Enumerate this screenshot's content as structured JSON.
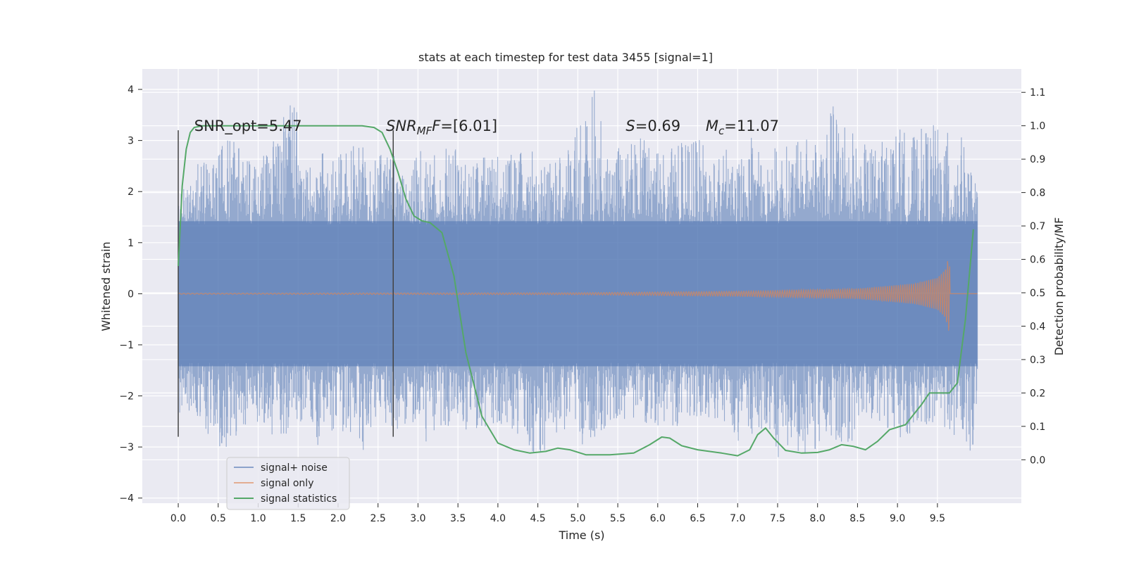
{
  "chart_data": {
    "type": "line",
    "title": "stats at each timestep for test data 3455 [signal=1]",
    "xlabel": "Time (s)",
    "ylabel": "Whitened strain",
    "y2label": "Detection probability/MF",
    "xlim": [
      -0.45,
      10.55
    ],
    "ylim": [
      -4.1,
      4.4
    ],
    "y2lim": [
      -0.13,
      1.17
    ],
    "grid": true,
    "legend_position": "lower-left",
    "x_ticks": [
      0.0,
      0.5,
      1.0,
      1.5,
      2.0,
      2.5,
      3.0,
      3.5,
      4.0,
      4.5,
      5.0,
      5.5,
      6.0,
      6.5,
      7.0,
      7.5,
      8.0,
      8.5,
      9.0,
      9.5
    ],
    "x_tick_labels": [
      "0.0",
      "0.5",
      "1.0",
      "1.5",
      "2.0",
      "2.5",
      "3.0",
      "3.5",
      "4.0",
      "4.5",
      "5.0",
      "5.5",
      "6.0",
      "6.5",
      "7.0",
      "7.5",
      "8.0",
      "8.5",
      "9.0",
      "9.5"
    ],
    "y_ticks": [
      4,
      3,
      2,
      1,
      0,
      -1,
      -2,
      -3,
      -4
    ],
    "y_tick_labels": [
      "4",
      "3",
      "2",
      "1",
      "0",
      "−1",
      "−2",
      "−3",
      "−4"
    ],
    "y2_ticks": [
      1.1,
      1.0,
      0.9,
      0.8,
      0.7,
      0.6,
      0.5,
      0.4,
      0.3,
      0.2,
      0.1,
      0.0
    ],
    "y2_tick_labels": [
      "1.1",
      "1.0",
      "0.9",
      "0.8",
      "0.7",
      "0.6",
      "0.5",
      "0.4",
      "0.3",
      "0.2",
      "0.1",
      "0.0"
    ],
    "annotations": [
      {
        "text": "SNR_opt=5.47",
        "x": 0.2,
        "y": 3.3
      },
      {
        "text": "SNR",
        "sub": "MF",
        "rest": "=[6.01]",
        "x": 2.6,
        "y": 3.3
      },
      {
        "text": "S",
        "rest": "=0.69",
        "x": 5.6,
        "y": 3.3
      },
      {
        "text": "M",
        "sub": "c",
        "rest": "=11.07",
        "x": 6.6,
        "y": 3.3
      }
    ],
    "vertical_lines": [
      {
        "x": 0.0,
        "y0": -2.8,
        "y1": 3.2
      },
      {
        "x": 2.69,
        "y0": -2.8,
        "y1": 3.2
      }
    ],
    "series": [
      {
        "name": "signal+ noise",
        "color": "#4c72b0",
        "x_range": [
          0.0,
          10.0
        ],
        "min_pts": [
          [
            0.0,
            -2.8
          ],
          [
            0.1,
            -2.3
          ],
          [
            0.3,
            -2.6
          ],
          [
            0.6,
            -3.2
          ],
          [
            0.8,
            -2.7
          ],
          [
            1.0,
            -2.5
          ],
          [
            1.2,
            -2.9
          ],
          [
            1.5,
            -2.6
          ],
          [
            1.6,
            -2.5
          ],
          [
            1.8,
            -3.4
          ],
          [
            1.9,
            -2.8
          ],
          [
            2.2,
            -3.0
          ],
          [
            2.3,
            -3.2
          ],
          [
            2.5,
            -2.4
          ],
          [
            2.7,
            -2.7
          ],
          [
            2.9,
            -2.5
          ],
          [
            3.1,
            -2.9
          ],
          [
            3.3,
            -2.6
          ],
          [
            3.6,
            -2.7
          ],
          [
            3.9,
            -2.6
          ],
          [
            4.2,
            -2.7
          ],
          [
            4.5,
            -3.3
          ],
          [
            4.8,
            -2.6
          ],
          [
            5.1,
            -3.1
          ],
          [
            5.3,
            -2.7
          ],
          [
            5.6,
            -2.5
          ],
          [
            5.9,
            -2.6
          ],
          [
            6.1,
            -2.7
          ],
          [
            6.4,
            -2.5
          ],
          [
            6.7,
            -2.6
          ],
          [
            7.0,
            -2.9
          ],
          [
            7.3,
            -2.8
          ],
          [
            7.5,
            -3.4
          ],
          [
            7.7,
            -2.9
          ],
          [
            7.9,
            -3.6
          ],
          [
            8.1,
            -2.7
          ],
          [
            8.3,
            -3.1
          ],
          [
            8.6,
            -2.6
          ],
          [
            8.8,
            -2.5
          ],
          [
            9.0,
            -2.9
          ],
          [
            9.3,
            -2.6
          ],
          [
            9.5,
            -2.5
          ],
          [
            9.7,
            -2.8
          ],
          [
            9.8,
            -2.7
          ],
          [
            9.95,
            -3.3
          ],
          [
            10.0,
            -2.0
          ]
        ],
        "max_pts": [
          [
            0.0,
            2.0
          ],
          [
            0.1,
            2.1
          ],
          [
            0.3,
            2.7
          ],
          [
            0.6,
            3.3
          ],
          [
            0.8,
            2.8
          ],
          [
            1.0,
            2.5
          ],
          [
            1.2,
            3.1
          ],
          [
            1.45,
            4.0
          ],
          [
            1.6,
            2.6
          ],
          [
            1.8,
            2.9
          ],
          [
            2.0,
            2.7
          ],
          [
            2.2,
            3.2
          ],
          [
            2.4,
            2.6
          ],
          [
            2.6,
            2.8
          ],
          [
            2.8,
            2.6
          ],
          [
            3.0,
            2.9
          ],
          [
            3.2,
            2.7
          ],
          [
            3.4,
            3.1
          ],
          [
            3.6,
            2.6
          ],
          [
            3.9,
            2.8
          ],
          [
            4.1,
            2.7
          ],
          [
            4.4,
            3.0
          ],
          [
            4.7,
            2.6
          ],
          [
            4.9,
            2.9
          ],
          [
            5.2,
            4.1
          ],
          [
            5.4,
            2.7
          ],
          [
            5.6,
            3.0
          ],
          [
            5.9,
            3.1
          ],
          [
            6.1,
            2.8
          ],
          [
            6.4,
            3.1
          ],
          [
            6.7,
            2.9
          ],
          [
            7.0,
            2.8
          ],
          [
            7.2,
            3.1
          ],
          [
            7.5,
            2.9
          ],
          [
            7.8,
            3.0
          ],
          [
            8.0,
            3.3
          ],
          [
            8.1,
            3.5
          ],
          [
            8.3,
            4.0
          ],
          [
            8.5,
            2.9
          ],
          [
            8.8,
            3.0
          ],
          [
            9.0,
            3.3
          ],
          [
            9.2,
            3.1
          ],
          [
            9.4,
            3.4
          ],
          [
            9.6,
            3.2
          ],
          [
            9.8,
            3.1
          ],
          [
            9.95,
            2.3
          ],
          [
            10.0,
            2.1
          ]
        ]
      },
      {
        "name": "signal only",
        "color": "#dd8452",
        "x_range": [
          0.0,
          10.0
        ],
        "envelope": [
          [
            0.0,
            0.01
          ],
          [
            5.0,
            0.02
          ],
          [
            7.0,
            0.05
          ],
          [
            8.5,
            0.1
          ],
          [
            9.2,
            0.2
          ],
          [
            9.5,
            0.32
          ],
          [
            9.6,
            0.5
          ],
          [
            9.65,
            0.8
          ],
          [
            9.66,
            0.0
          ],
          [
            10.0,
            0.0
          ]
        ]
      },
      {
        "name": "signal statistics",
        "color": "#55a868",
        "axis": "right",
        "x": [
          0.0,
          0.05,
          0.1,
          0.15,
          0.2,
          0.3,
          0.5,
          1.0,
          1.5,
          2.0,
          2.3,
          2.45,
          2.55,
          2.65,
          2.75,
          2.85,
          2.95,
          3.05,
          3.15,
          3.3,
          3.45,
          3.6,
          3.8,
          4.0,
          4.2,
          4.4,
          4.6,
          4.75,
          4.9,
          5.1,
          5.4,
          5.7,
          5.9,
          6.05,
          6.15,
          6.3,
          6.5,
          6.8,
          7.0,
          7.15,
          7.25,
          7.35,
          7.45,
          7.6,
          7.8,
          8.0,
          8.15,
          8.3,
          8.45,
          8.6,
          8.75,
          8.9,
          9.1,
          9.3,
          9.4,
          9.55,
          9.65,
          9.75,
          9.85,
          9.95
        ],
        "values": [
          0.58,
          0.82,
          0.93,
          0.98,
          0.995,
          1.0,
          1.0,
          1.0,
          1.0,
          1.0,
          1.0,
          0.995,
          0.98,
          0.93,
          0.86,
          0.78,
          0.73,
          0.715,
          0.71,
          0.68,
          0.55,
          0.32,
          0.13,
          0.05,
          0.03,
          0.02,
          0.025,
          0.035,
          0.03,
          0.015,
          0.015,
          0.02,
          0.045,
          0.068,
          0.065,
          0.042,
          0.03,
          0.02,
          0.012,
          0.03,
          0.075,
          0.095,
          0.065,
          0.028,
          0.02,
          0.022,
          0.03,
          0.045,
          0.04,
          0.03,
          0.055,
          0.09,
          0.105,
          0.165,
          0.2,
          0.2,
          0.2,
          0.23,
          0.42,
          0.69
        ]
      }
    ]
  }
}
